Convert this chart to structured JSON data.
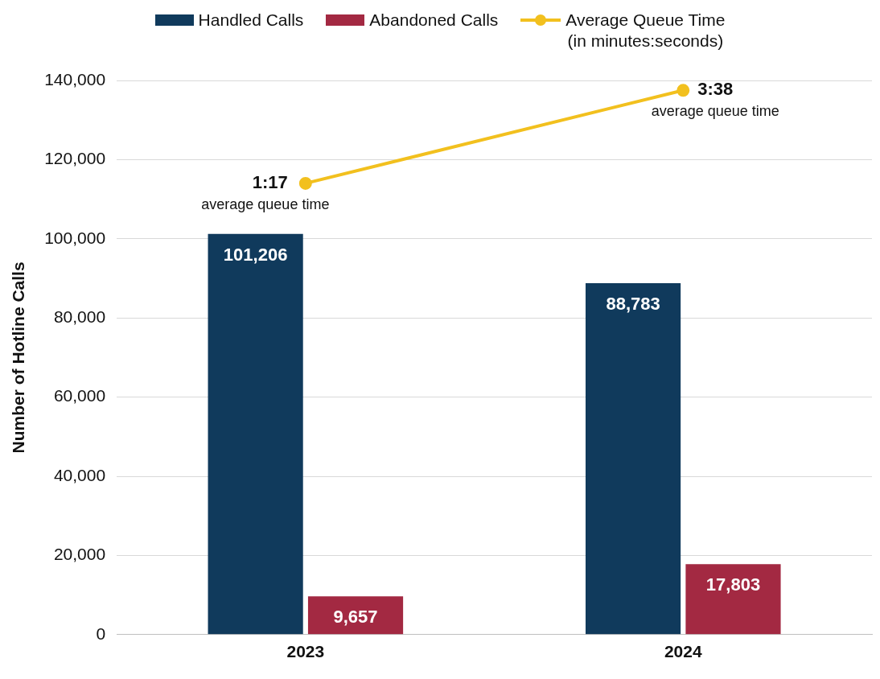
{
  "chart_data": {
    "type": "bar",
    "ylabel": "Number of Hotline Calls",
    "categories": [
      "2023",
      "2024"
    ],
    "series": [
      {
        "name": "Handled Calls",
        "color": "#103a5c",
        "values": [
          101206,
          88783
        ],
        "value_labels": [
          "101,206",
          "88,783"
        ]
      },
      {
        "name": "Abandoned Calls",
        "color": "#a32942",
        "values": [
          9657,
          17803
        ],
        "value_labels": [
          "9,657",
          "17,803"
        ]
      },
      {
        "name": "Average Queue Time\n(in minutes:seconds)",
        "type": "line",
        "axis": "y2",
        "color": "#f2c01e",
        "values": [
          1.28,
          3.63
        ],
        "value_labels": [
          "1:17",
          "3:38"
        ]
      }
    ],
    "ylim": [
      0,
      140000
    ],
    "yticks": [
      0,
      {
        "value": 20000,
        "label": "20,000"
      },
      {
        "value": 40000,
        "label": "40,000"
      },
      {
        "value": 60000,
        "label": "60,000"
      },
      {
        "value": 80000,
        "label": "80,000"
      },
      {
        "value": 100000,
        "label": "100,000"
      },
      {
        "value": 120000,
        "label": "120,000"
      },
      {
        "value": 140000,
        "label": "140,000"
      }
    ],
    "y2lim": [
      -10.12,
      3.88
    ],
    "annotations": [
      "average queue time",
      "average queue time"
    ],
    "grid": "y",
    "legend": "top",
    "marker": "circle",
    "line_style": "solid"
  }
}
